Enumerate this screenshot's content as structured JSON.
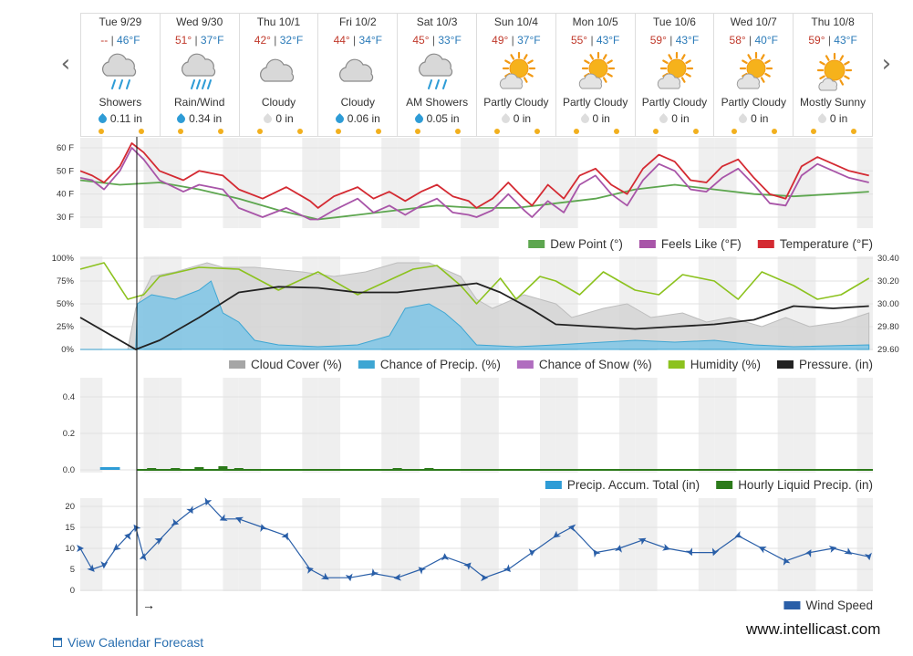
{
  "nav": {
    "prev": "‹",
    "next": "›"
  },
  "days": [
    {
      "date": "Tue 9/29",
      "hi": "--",
      "lo": "46°F",
      "cond": "Showers",
      "precip": "0.11 in",
      "icon": "rain-cloud-icon",
      "wet": true
    },
    {
      "date": "Wed 9/30",
      "hi": "51°",
      "lo": "37°F",
      "cond": "Rain/Wind",
      "precip": "0.34 in",
      "icon": "rain-wind-cloud-icon",
      "wet": true
    },
    {
      "date": "Thu 10/1",
      "hi": "42°",
      "lo": "32°F",
      "cond": "Cloudy",
      "precip": "0 in",
      "icon": "cloud-icon",
      "wet": false
    },
    {
      "date": "Fri 10/2",
      "hi": "44°",
      "lo": "34°F",
      "cond": "Cloudy",
      "precip": "0.06 in",
      "icon": "cloud-icon",
      "wet": true
    },
    {
      "date": "Sat 10/3",
      "hi": "45°",
      "lo": "33°F",
      "cond": "AM Showers",
      "precip": "0.05 in",
      "icon": "rain-cloud-icon",
      "wet": true
    },
    {
      "date": "Sun 10/4",
      "hi": "49°",
      "lo": "37°F",
      "cond": "Partly Cloudy",
      "precip": "0 in",
      "icon": "partly-cloudy-icon",
      "wet": false
    },
    {
      "date": "Mon 10/5",
      "hi": "55°",
      "lo": "43°F",
      "cond": "Partly Cloudy",
      "precip": "0 in",
      "icon": "partly-cloudy-icon",
      "wet": false
    },
    {
      "date": "Tue 10/6",
      "hi": "59°",
      "lo": "43°F",
      "cond": "Partly Cloudy",
      "precip": "0 in",
      "icon": "partly-cloudy-icon",
      "wet": false
    },
    {
      "date": "Wed 10/7",
      "hi": "58°",
      "lo": "40°F",
      "cond": "Partly Cloudy",
      "precip": "0 in",
      "icon": "partly-cloudy-icon",
      "wet": false
    },
    {
      "date": "Thu 10/8",
      "hi": "59°",
      "lo": "43°F",
      "cond": "Mostly Sunny",
      "precip": "0 in",
      "icon": "mostly-sunny-icon",
      "wet": false
    }
  ],
  "colors": {
    "temperature": "#d42a32",
    "feels_like": "#a855a8",
    "dew_point": "#5da64f",
    "cloud_cover": "#a6a6a6",
    "precip_chance": "#3ea6d3",
    "snow_chance": "#b06dbf",
    "humidity": "#8cc21e",
    "pressure": "#222222",
    "precip_accum": "#2e9cd6",
    "hourly_precip": "#2c7a1a",
    "wind": "#2a5fa8"
  },
  "chart_data": [
    {
      "type": "line",
      "x_unit": "day index (0 = Tue 9/29 start)",
      "yticks": [
        "60 F",
        "50 F",
        "40 F",
        "30 F"
      ],
      "ylim": [
        25,
        65
      ],
      "series": [
        {
          "name": "Temperature (°F)",
          "x": [
            0,
            0.15,
            0.3,
            0.5,
            0.65,
            0.8,
            1.0,
            1.3,
            1.5,
            1.8,
            2.0,
            2.3,
            2.6,
            2.9,
            3.0,
            3.2,
            3.5,
            3.7,
            3.9,
            4.1,
            4.3,
            4.5,
            4.7,
            4.9,
            5.0,
            5.2,
            5.4,
            5.6,
            5.7,
            5.9,
            6.1,
            6.3,
            6.5,
            6.7,
            6.9,
            7.1,
            7.3,
            7.5,
            7.7,
            7.9,
            8.1,
            8.3,
            8.5,
            8.7,
            8.9,
            9.1,
            9.3,
            9.5,
            9.7,
            9.95
          ],
          "values": [
            50,
            48,
            45,
            52,
            62,
            58,
            50,
            46,
            50,
            48,
            42,
            38,
            43,
            37,
            34,
            39,
            43,
            38,
            41,
            37,
            41,
            44,
            39,
            37,
            34,
            38,
            45,
            38,
            35,
            44,
            38,
            48,
            51,
            44,
            40,
            51,
            57,
            54,
            46,
            45,
            52,
            55,
            47,
            40,
            38,
            52,
            56,
            53,
            50,
            48
          ]
        },
        {
          "name": "Feels Like (°F)",
          "x": [
            0,
            0.15,
            0.3,
            0.5,
            0.65,
            0.8,
            1.0,
            1.3,
            1.5,
            1.8,
            2.0,
            2.3,
            2.6,
            2.9,
            3.0,
            3.2,
            3.5,
            3.7,
            3.9,
            4.1,
            4.3,
            4.5,
            4.7,
            4.9,
            5.0,
            5.2,
            5.4,
            5.6,
            5.7,
            5.9,
            6.1,
            6.3,
            6.5,
            6.7,
            6.9,
            7.1,
            7.3,
            7.5,
            7.7,
            7.9,
            8.1,
            8.3,
            8.5,
            8.7,
            8.9,
            9.1,
            9.3,
            9.5,
            9.7,
            9.95
          ],
          "values": [
            47,
            46,
            42,
            50,
            60,
            55,
            46,
            41,
            44,
            42,
            34,
            30,
            34,
            29,
            29,
            33,
            38,
            32,
            35,
            31,
            35,
            38,
            32,
            31,
            30,
            33,
            40,
            33,
            30,
            37,
            32,
            44,
            48,
            40,
            35,
            46,
            53,
            50,
            42,
            41,
            47,
            51,
            44,
            36,
            35,
            48,
            53,
            50,
            47,
            45
          ]
        },
        {
          "name": "Dew Point (°)",
          "x": [
            0,
            0.5,
            1.0,
            1.5,
            2.0,
            2.5,
            3.0,
            3.5,
            4.0,
            4.5,
            5.0,
            5.5,
            6.0,
            6.5,
            7.0,
            7.5,
            8.0,
            8.5,
            9.0,
            9.5,
            9.95
          ],
          "values": [
            46,
            44,
            45,
            42,
            38,
            33,
            29,
            31,
            33,
            35,
            34,
            34,
            36,
            38,
            42,
            44,
            42,
            40,
            39,
            40,
            41
          ]
        }
      ]
    },
    {
      "type": "area",
      "x_unit": "day index",
      "yticks_left": [
        "100%",
        "75%",
        "50%",
        "25%",
        "0%"
      ],
      "yticks_right": [
        "30.40",
        "30.20",
        "30.00",
        "29.80",
        "29.60"
      ],
      "ylim_left": [
        0,
        100
      ],
      "ylim_right": [
        29.6,
        30.4
      ],
      "series": [
        {
          "name": "Cloud Cover (%)",
          "axis": "left",
          "x": [
            0,
            0.6,
            0.7,
            0.9,
            1.2,
            1.6,
            1.8,
            2.2,
            2.8,
            3.2,
            3.6,
            4.0,
            4.4,
            4.8,
            5.0,
            5.2,
            5.6,
            6.0,
            6.2,
            6.6,
            6.9,
            7.2,
            7.6,
            7.9,
            8.2,
            8.6,
            8.9,
            9.2,
            9.6,
            9.95
          ],
          "values": [
            0,
            0,
            45,
            80,
            85,
            95,
            90,
            90,
            85,
            80,
            85,
            95,
            95,
            80,
            55,
            45,
            60,
            50,
            35,
            45,
            50,
            35,
            40,
            30,
            35,
            25,
            35,
            25,
            30,
            40
          ]
        },
        {
          "name": "Chance of Precip. (%)",
          "axis": "left",
          "x": [
            0,
            0.7,
            0.72,
            0.9,
            1.2,
            1.5,
            1.65,
            1.8,
            2.0,
            2.2,
            2.5,
            3.0,
            3.5,
            3.9,
            4.0,
            4.1,
            4.4,
            4.6,
            4.8,
            5.0,
            5.5,
            6.0,
            7.0,
            7.5,
            8.0,
            8.5,
            9.0,
            9.95
          ],
          "values": [
            0,
            0,
            50,
            60,
            55,
            65,
            75,
            40,
            30,
            10,
            5,
            3,
            5,
            15,
            30,
            45,
            50,
            40,
            25,
            5,
            3,
            5,
            10,
            8,
            10,
            5,
            3,
            5
          ]
        },
        {
          "name": "Chance of Snow (%)",
          "axis": "left",
          "x": [
            0,
            9.95
          ],
          "values": [
            0,
            0
          ]
        },
        {
          "name": "Humidity (%)",
          "axis": "left",
          "x": [
            0,
            0.3,
            0.6,
            0.8,
            1.0,
            1.5,
            2.0,
            2.5,
            3.0,
            3.5,
            3.8,
            4.2,
            4.5,
            4.8,
            5.0,
            5.3,
            5.5,
            5.8,
            6.0,
            6.3,
            6.6,
            7.0,
            7.3,
            7.6,
            8.0,
            8.3,
            8.6,
            9.0,
            9.3,
            9.6,
            9.95
          ],
          "values": [
            88,
            95,
            55,
            60,
            80,
            90,
            88,
            65,
            85,
            60,
            72,
            88,
            92,
            70,
            50,
            78,
            55,
            80,
            75,
            60,
            85,
            65,
            60,
            82,
            75,
            55,
            85,
            70,
            55,
            60,
            78
          ]
        },
        {
          "name": "Pressure. (in)",
          "axis": "right",
          "x": [
            0,
            0.5,
            0.7,
            1.0,
            1.5,
            2.0,
            2.5,
            3.0,
            3.5,
            4.0,
            4.5,
            5.0,
            5.3,
            5.7,
            6.0,
            6.5,
            7.0,
            7.5,
            8.0,
            8.5,
            9.0,
            9.5,
            9.95
          ],
          "values": [
            29.88,
            29.68,
            29.6,
            29.68,
            29.88,
            30.1,
            30.15,
            30.14,
            30.1,
            30.1,
            30.14,
            30.18,
            30.1,
            29.95,
            29.82,
            29.8,
            29.78,
            29.8,
            29.82,
            29.86,
            29.98,
            29.96,
            29.98
          ]
        }
      ]
    },
    {
      "type": "bar",
      "x_unit": "day index",
      "yticks": [
        "0.4",
        "0.2",
        "0.0"
      ],
      "ylim": [
        0,
        0.5
      ],
      "series": [
        {
          "name": "Precip. Accum. Total (in)",
          "x": [
            0.25,
            0.5
          ],
          "values": [
            0.01,
            0.01
          ]
        },
        {
          "name": "Hourly Liquid Precip. (in)",
          "x": [
            0.9,
            1.2,
            1.5,
            1.8,
            2.0,
            4.0,
            4.4
          ],
          "values": [
            0.01,
            0.01,
            0.015,
            0.02,
            0.01,
            0.01,
            0.01
          ]
        }
      ]
    },
    {
      "type": "line",
      "x_unit": "day index",
      "yticks": [
        "20",
        "15",
        "10",
        "5",
        "0"
      ],
      "ylim": [
        0,
        23
      ],
      "series": [
        {
          "name": "Wind Speed",
          "x": [
            0,
            0.15,
            0.3,
            0.45,
            0.6,
            0.7,
            0.8,
            1.0,
            1.2,
            1.4,
            1.6,
            1.8,
            2.0,
            2.3,
            2.6,
            2.9,
            3.1,
            3.4,
            3.7,
            4.0,
            4.3,
            4.6,
            4.9,
            5.1,
            5.4,
            5.7,
            6.0,
            6.2,
            6.5,
            6.8,
            7.1,
            7.4,
            7.7,
            8.0,
            8.3,
            8.6,
            8.9,
            9.2,
            9.5,
            9.7,
            9.95
          ],
          "values": [
            10,
            5,
            6,
            10,
            13,
            15,
            8,
            12,
            16,
            19,
            21,
            17,
            17,
            15,
            13,
            5,
            3,
            3,
            4,
            3,
            5,
            8,
            6,
            3,
            5,
            9,
            13,
            15,
            9,
            10,
            12,
            10,
            9,
            9,
            13,
            10,
            7,
            9,
            10,
            9,
            8
          ]
        }
      ]
    }
  ],
  "legends": {
    "chart1": [
      "Dew Point (°)",
      "Feels Like (°F)",
      "Temperature (°F)"
    ],
    "chart2": [
      "Cloud Cover (%)",
      "Chance of Precip. (%)",
      "Chance of Snow (%)",
      "Humidity (%)",
      "Pressure. (in)"
    ],
    "chart3": [
      "Precip. Accum. Total (in)",
      "Hourly Liquid Precip. (in)"
    ],
    "chart4": [
      "Wind Speed"
    ]
  },
  "now_arrow": "→",
  "footer": {
    "calendar_link": "View Calendar Forecast",
    "watermark": "www.intellicast.com"
  }
}
